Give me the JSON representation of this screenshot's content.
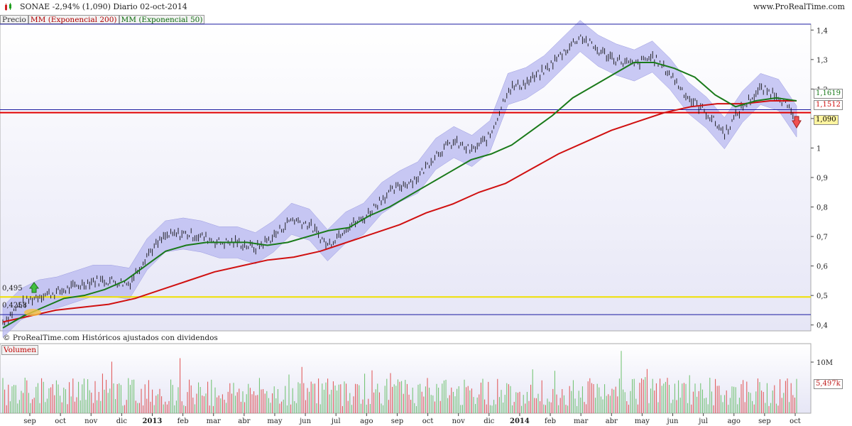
{
  "header": {
    "ticker_line": "SONAE   -2,94% (1,090)   Diario   02-oct-2014",
    "site": "www.ProRealTime.com"
  },
  "legend": {
    "price": "Precio",
    "ma200": "MM (Exponencial 200)",
    "ma50": "MM (Exponencial 50)"
  },
  "footer": {
    "copyright": "© ProRealTime.com  Históricos ajustados con dividendos"
  },
  "volume_panel": {
    "label": "Volumen",
    "ticks": [
      "10M"
    ],
    "last_value": "5,497k"
  },
  "price_labels": {
    "ma50_last": "1,1619",
    "ma200_last": "1,1512",
    "close_last": "1,090",
    "left_495": "0,495",
    "left_4258": "0,4258"
  },
  "colors": {
    "ma200": "#d01010",
    "ma50": "#1a7a1a",
    "band": "#b8b8f0",
    "hline_blue": "#1a1aa0",
    "hline_red": "#e00000",
    "hline_yellow": "#f0e000",
    "vol_up": "#6ac06a",
    "vol_down": "#e05050"
  },
  "chart_data": {
    "type": "line",
    "title": "SONAE -2,94% (1,090) Diario 02-oct-2014",
    "y_ticks": [
      "0,4",
      "0,5",
      "0,6",
      "0,7",
      "0,8",
      "0,9",
      "1",
      "1,1",
      "1,2",
      "1,3",
      "1,4"
    ],
    "y_values": [
      0.4,
      0.5,
      0.6,
      0.7,
      0.8,
      0.9,
      1.0,
      1.1,
      1.2,
      1.3,
      1.4
    ],
    "ylim": [
      0.38,
      1.42
    ],
    "x_ticks": [
      "sep",
      "oct",
      "nov",
      "dic",
      "2013",
      "feb",
      "mar",
      "abr",
      "may",
      "jun",
      "jul",
      "ago",
      "sep",
      "oct",
      "nov",
      "dic",
      "2014",
      "feb",
      "mar",
      "abr",
      "may",
      "jun",
      "jul",
      "ago",
      "sep",
      "oct"
    ],
    "horizontal_lines": [
      {
        "value": 1.42,
        "color": "blue"
      },
      {
        "value": 1.13,
        "color": "blue"
      },
      {
        "value": 1.12,
        "color": "red"
      },
      {
        "value": 0.495,
        "color": "yellow"
      },
      {
        "value": 0.435,
        "color": "blue"
      }
    ],
    "series": [
      {
        "name": "Precio",
        "values": [
          0.41,
          0.47,
          0.5,
          0.51,
          0.53,
          0.55,
          0.55,
          0.54,
          0.64,
          0.7,
          0.71,
          0.7,
          0.68,
          0.68,
          0.66,
          0.7,
          0.76,
          0.74,
          0.67,
          0.73,
          0.76,
          0.83,
          0.87,
          0.9,
          0.98,
          1.02,
          0.99,
          1.04,
          1.2,
          1.22,
          1.26,
          1.32,
          1.38,
          1.33,
          1.3,
          1.28,
          1.31,
          1.25,
          1.17,
          1.12,
          1.05,
          1.14,
          1.2,
          1.18,
          1.09
        ]
      },
      {
        "name": "MM (Exponencial 50)",
        "values": [
          0.39,
          0.43,
          0.46,
          0.49,
          0.5,
          0.52,
          0.55,
          0.6,
          0.65,
          0.67,
          0.68,
          0.68,
          0.68,
          0.67,
          0.68,
          0.7,
          0.72,
          0.73,
          0.77,
          0.8,
          0.84,
          0.88,
          0.92,
          0.96,
          0.98,
          1.01,
          1.06,
          1.11,
          1.17,
          1.21,
          1.25,
          1.29,
          1.29,
          1.27,
          1.24,
          1.18,
          1.14,
          1.16,
          1.17,
          1.16
        ]
      },
      {
        "name": "MM (Exponencial 200)",
        "values": [
          0.41,
          0.43,
          0.45,
          0.46,
          0.47,
          0.49,
          0.52,
          0.55,
          0.58,
          0.6,
          0.62,
          0.63,
          0.65,
          0.68,
          0.71,
          0.74,
          0.78,
          0.81,
          0.85,
          0.88,
          0.93,
          0.98,
          1.02,
          1.06,
          1.09,
          1.12,
          1.14,
          1.15,
          1.15,
          1.16,
          1.16
        ]
      }
    ]
  }
}
